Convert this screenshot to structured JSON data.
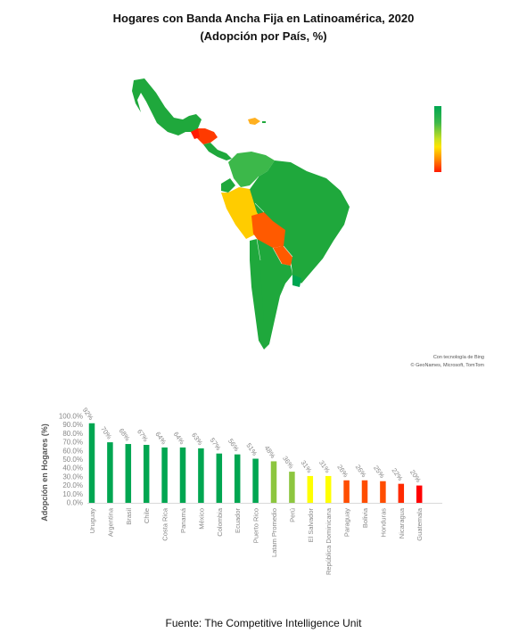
{
  "title_line1": "Hogares con Banda Ancha Fija en Latinoamérica, 2020",
  "title_line2": "(Adopción por País, %)",
  "map_credit_line1": "Con tecnología de Bing",
  "map_credit_line2": "© GeoNames, Microsoft, TomTom",
  "source": "Fuente: The Competitive Intelligence Unit",
  "colors": {
    "high": "#00a651",
    "mid_green": "#8dc63f",
    "yellow": "#ffff00",
    "orange": "#ff6a00",
    "red": "#ff0000"
  },
  "chart_data": {
    "type": "bar",
    "title": "",
    "xlabel": "",
    "ylabel": "Adopción en Hogares (%)",
    "ylim": [
      0,
      100
    ],
    "yticks": [
      "0.0%",
      "10.0%",
      "20.0%",
      "30.0%",
      "40.0%",
      "50.0%",
      "60.0%",
      "70.0%",
      "80.0%",
      "90.0%",
      "100.0%"
    ],
    "categories": [
      "Uruguay",
      "Argentina",
      "Brasil",
      "Chile",
      "Costa Rica",
      "Panamá",
      "México",
      "Colombia",
      "Ecuador",
      "Puerto Rico",
      "Latam Promedio",
      "Perú",
      "El Salvador",
      "República Dominicana",
      "Paraguay",
      "Bolivia",
      "Honduras",
      "Nicaragua",
      "Guatemala"
    ],
    "values": [
      92,
      70,
      68,
      67,
      64,
      64,
      63,
      57,
      56,
      51,
      48,
      36,
      31,
      31,
      26,
      26,
      25,
      22,
      20
    ],
    "data_labels": [
      "92%",
      "70%",
      "68%",
      "67%",
      "64%",
      "64%",
      "63%",
      "57%",
      "56%",
      "51%",
      "48%",
      "36%",
      "31%",
      "31%",
      "26%",
      "26%",
      "25%",
      "22%",
      "20%"
    ],
    "bar_colors": [
      "#00a651",
      "#00a651",
      "#00a651",
      "#00a651",
      "#00a651",
      "#00a651",
      "#00a651",
      "#00a651",
      "#00a651",
      "#00a651",
      "#8dc63f",
      "#8dc63f",
      "#ffff00",
      "#ffff00",
      "#ff4d00",
      "#ff4d00",
      "#ff4d00",
      "#ff2a00",
      "#ff0000"
    ],
    "grid": false,
    "legend": "none"
  }
}
